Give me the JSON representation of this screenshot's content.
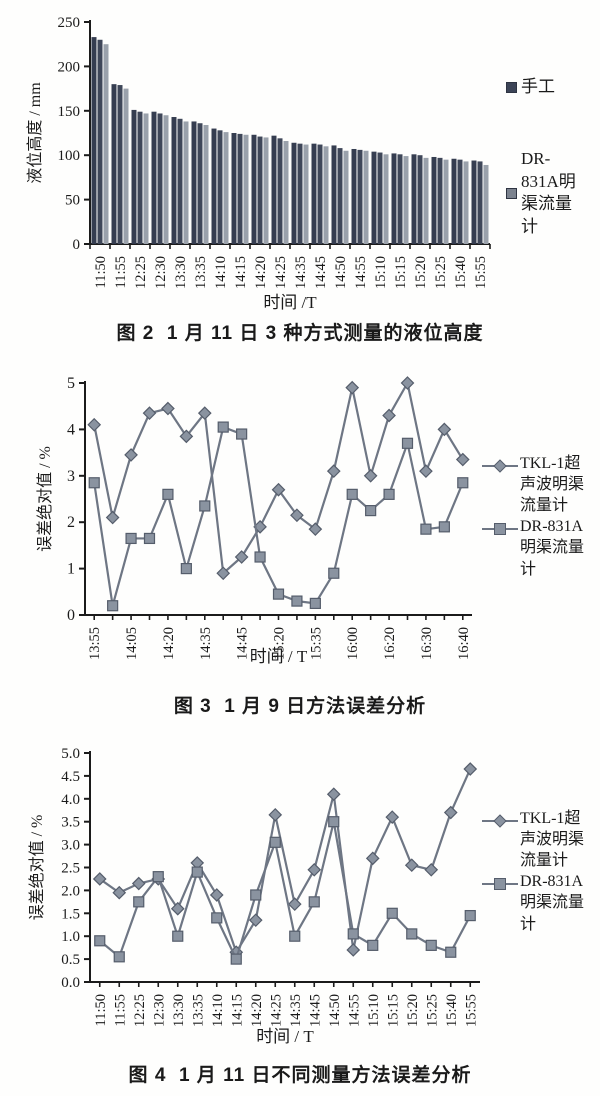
{
  "colors": {
    "axis": "#1b1b1b",
    "text": "#1a1a1a",
    "line": "#6e7684",
    "marker_fill": "#8a93a0",
    "marker_stroke": "#555d6b",
    "bar_series": [
      "#353d50",
      "#3f4759",
      "#9aa1ab"
    ],
    "legend_swatches": [
      "#3c4457",
      "#7b828e"
    ]
  },
  "chart_data": [
    {
      "type": "bar",
      "caption": "图 2  1 月 11 日 3 种方式测量的液位高度",
      "xlabel": "时间 /T",
      "ylabel": "液位高度 / mm",
      "ylim": [
        0,
        250
      ],
      "yticks": [
        0,
        50,
        100,
        150,
        200,
        250
      ],
      "ytick_labels": [
        "0",
        "50",
        "100",
        "150",
        "200",
        "250"
      ],
      "categories": [
        "11:50",
        "11:55",
        "12:25",
        "12:30",
        "13:30",
        "13:35",
        "14:10",
        "14:15",
        "14:20",
        "14:25",
        "14:35",
        "14:45",
        "14:50",
        "14:55",
        "15:10",
        "15:15",
        "15:20",
        "15:25",
        "15:40",
        "15:55"
      ],
      "series": [
        {
          "name": "手工",
          "values": [
            233,
            180,
            151,
            149,
            143,
            138,
            130,
            125,
            123,
            122,
            114,
            113,
            111,
            107,
            104,
            102,
            101,
            98,
            96,
            94
          ]
        },
        {
          "name": "",
          "values": [
            230,
            179,
            149,
            147,
            141,
            136,
            128,
            124,
            121,
            119,
            113,
            112,
            108,
            106,
            103,
            101,
            100,
            97,
            95,
            93
          ]
        },
        {
          "name": "DR-831A明渠流量计",
          "values": [
            225,
            175,
            147,
            145,
            138,
            134,
            126,
            123,
            120,
            116,
            112,
            110,
            105,
            105,
            101,
            99,
            97,
            95,
            93,
            89
          ]
        }
      ],
      "legend": [
        "手工",
        "DR-831A明渠流量计"
      ],
      "legend_position": "right",
      "grid": false
    },
    {
      "type": "line",
      "caption": "图 3  1 月 9 日方法误差分析",
      "xlabel": "时间 / T",
      "ylabel": "误差绝对值 / %",
      "ylim": [
        0,
        5
      ],
      "yticks": [
        0,
        1,
        2,
        3,
        4,
        5
      ],
      "ytick_labels": [
        "0",
        "1",
        "2",
        "3",
        "4",
        "5"
      ],
      "x_tick_labels": [
        "13:55",
        "",
        "14:05",
        "",
        "14:20",
        "",
        "14:35",
        "",
        "14:45",
        "",
        "15:20",
        "",
        "15:35",
        "",
        "16:00",
        "",
        "16:20",
        "",
        "16:30",
        "",
        "16:40"
      ],
      "series": [
        {
          "name": "TKL-1超声波明渠流量计",
          "marker": "diamond",
          "values": [
            4.1,
            2.1,
            3.45,
            4.35,
            4.45,
            3.85,
            4.35,
            0.9,
            1.25,
            1.9,
            2.7,
            2.15,
            1.85,
            3.1,
            4.9,
            3.0,
            4.3,
            5.0,
            3.1,
            4.0,
            3.35
          ]
        },
        {
          "name": "DR-831A明渠流量计",
          "marker": "square",
          "values": [
            2.85,
            0.2,
            1.65,
            1.65,
            2.6,
            1.0,
            2.35,
            4.05,
            3.9,
            1.25,
            0.45,
            0.3,
            0.25,
            0.9,
            2.6,
            2.25,
            2.6,
            3.7,
            1.85,
            1.9,
            2.85
          ]
        }
      ],
      "legend": [
        "TKL-1超声波明渠流量计",
        "DR-831A明渠流量计"
      ],
      "legend_position": "right",
      "grid": false
    },
    {
      "type": "line",
      "caption": "图 4  1 月 11 日不同测量方法误差分析",
      "xlabel": "时间 / T",
      "ylabel": "误差绝对值 / %",
      "ylim": [
        0,
        5
      ],
      "yticks": [
        0,
        0.5,
        1,
        1.5,
        2,
        2.5,
        3,
        3.5,
        4,
        4.5,
        5
      ],
      "ytick_labels": [
        "0.0",
        "0.5",
        "1.0",
        "1.5",
        "2.0",
        "2.5",
        "3.0",
        "3.5",
        "4.0",
        "4.5",
        "5.0"
      ],
      "x_tick_labels": [
        "11:50",
        "11:55",
        "12:25",
        "12:30",
        "13:30",
        "13:35",
        "14:10",
        "14:15",
        "14:20",
        "14:25",
        "14:35",
        "14:45",
        "14:50",
        "14:55",
        "15:10",
        "15:15",
        "15:20",
        "15:25",
        "15:40",
        "15:55"
      ],
      "series": [
        {
          "name": "TKL-1超声波明渠流量计",
          "marker": "diamond",
          "values": [
            2.25,
            1.95,
            2.15,
            2.25,
            1.6,
            2.6,
            1.9,
            0.65,
            1.35,
            3.65,
            1.7,
            2.45,
            4.1,
            0.7,
            2.7,
            3.6,
            2.55,
            2.45,
            3.7,
            4.65
          ]
        },
        {
          "name": "DR-831A明渠流量计",
          "marker": "square",
          "values": [
            0.9,
            0.55,
            1.75,
            2.3,
            1.0,
            2.4,
            1.4,
            0.5,
            1.9,
            3.05,
            1.0,
            1.75,
            3.5,
            1.05,
            0.8,
            1.5,
            1.05,
            0.8,
            0.65,
            1.45
          ]
        }
      ],
      "legend": [
        "TKL-1超声波明渠流量计",
        "DR-831A明渠流量计"
      ],
      "legend_position": "right",
      "grid": false
    }
  ]
}
